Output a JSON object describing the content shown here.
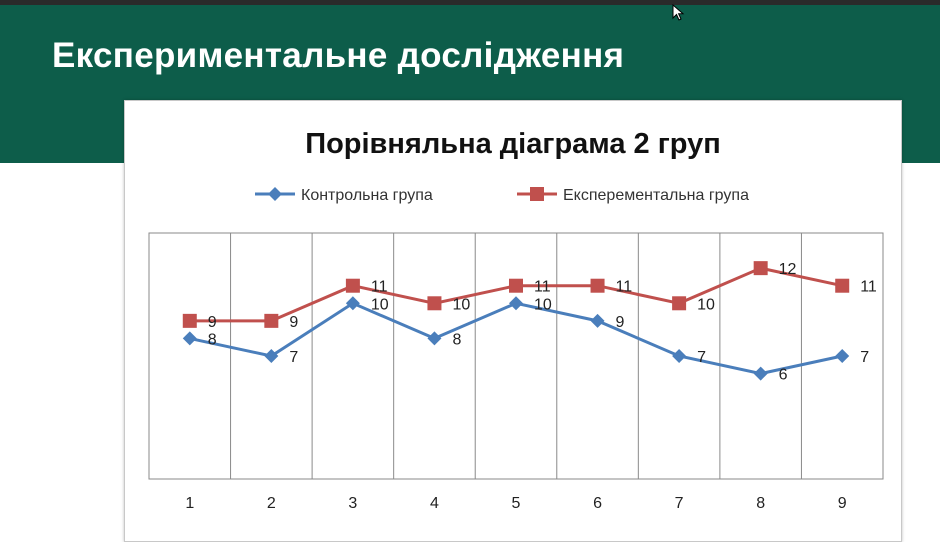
{
  "slide": {
    "title": "Експериментальне дослідження"
  },
  "chart_data": {
    "type": "line",
    "title": "Порівняльна діаграма 2 груп",
    "categories": [
      "1",
      "2",
      "3",
      "4",
      "5",
      "6",
      "7",
      "8",
      "9"
    ],
    "series": [
      {
        "name": "Контрольна група",
        "values": [
          8,
          7,
          10,
          8,
          10,
          9,
          7,
          6,
          7
        ],
        "color": "#4a7ebb",
        "marker": "diamond"
      },
      {
        "name": "Експерементальна група",
        "values": [
          9,
          9,
          11,
          10,
          11,
          11,
          10,
          12,
          11
        ],
        "color": "#c0504d",
        "marker": "square"
      }
    ],
    "data_labels": true,
    "xlabel": "",
    "ylabel": "",
    "ylim": [
      0,
      14
    ],
    "grid": "vertical",
    "legend": "top"
  },
  "colors": {
    "banner": "#0d5d4a",
    "title_text": "#ffffff"
  }
}
